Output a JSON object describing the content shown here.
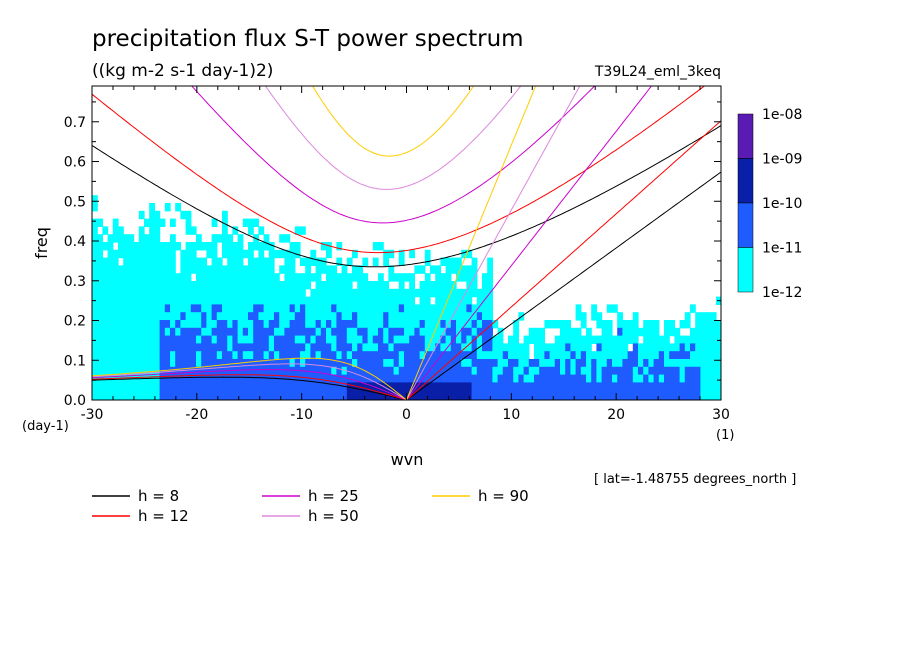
{
  "title": "precipitation flux S-T power spectrum",
  "subtitle": "((kg m-2 s-1 day-1)2)",
  "run_label": "T39L24_eml_3keq",
  "footnote": "[ lat=-1.48755 degrees_north ]",
  "chart_data": {
    "type": "heatmap",
    "xlabel": "wvn",
    "ylabel": "freq",
    "x_unit": "(1)",
    "y_unit": "(day-1)",
    "xlim": [
      -30,
      30
    ],
    "ylim": [
      0,
      0.79
    ],
    "x_ticks": [
      -30,
      -20,
      -10,
      0,
      10,
      20,
      30
    ],
    "y_ticks": [
      0.0,
      0.1,
      0.2,
      0.3,
      0.4,
      0.5,
      0.6,
      0.7
    ],
    "x_tick_labels": [
      "-30",
      "-20",
      "-10",
      "0",
      "10",
      "20",
      "30"
    ],
    "y_tick_labels": [
      "0.0",
      "0.1",
      "0.2",
      "0.3",
      "0.4",
      "0.5",
      "0.6",
      "0.7"
    ],
    "colorbar": {
      "labels": [
        "1e-08",
        "1e-09",
        "1e-10",
        "1e-11",
        "1e-12"
      ],
      "colors": [
        "#5a1bb4",
        "#0a1fa8",
        "#1e5cff",
        "#00ffff"
      ]
    },
    "contour_levels": [
      1e-12,
      1e-11,
      1e-10,
      1e-09,
      1e-08
    ],
    "dispersion_curves": [
      {
        "name": "h =  8",
        "h": 8,
        "color": "#000000"
      },
      {
        "name": "h = 12",
        "h": 12,
        "color": "#ff0000"
      },
      {
        "name": "h = 25",
        "h": 25,
        "color": "#cc00cc"
      },
      {
        "name": "h = 50",
        "h": 50,
        "color": "#dd88dd"
      },
      {
        "name": "h = 90",
        "h": 90,
        "color": "#ffcc00"
      }
    ],
    "regions": [
      {
        "level": "1e-11 to 1e-12",
        "description": "broad cyan field for freq below ~0.45, widest at negative wvn"
      },
      {
        "level": "1e-10 to 1e-11",
        "description": "blue blobs, mostly at freq below ~0.25, concentrated near wvn -20 to 10"
      },
      {
        "level": "1e-09 to 1e-10",
        "description": "small dark-blue cores near wvn 0 at freq below ~0.05"
      }
    ]
  }
}
